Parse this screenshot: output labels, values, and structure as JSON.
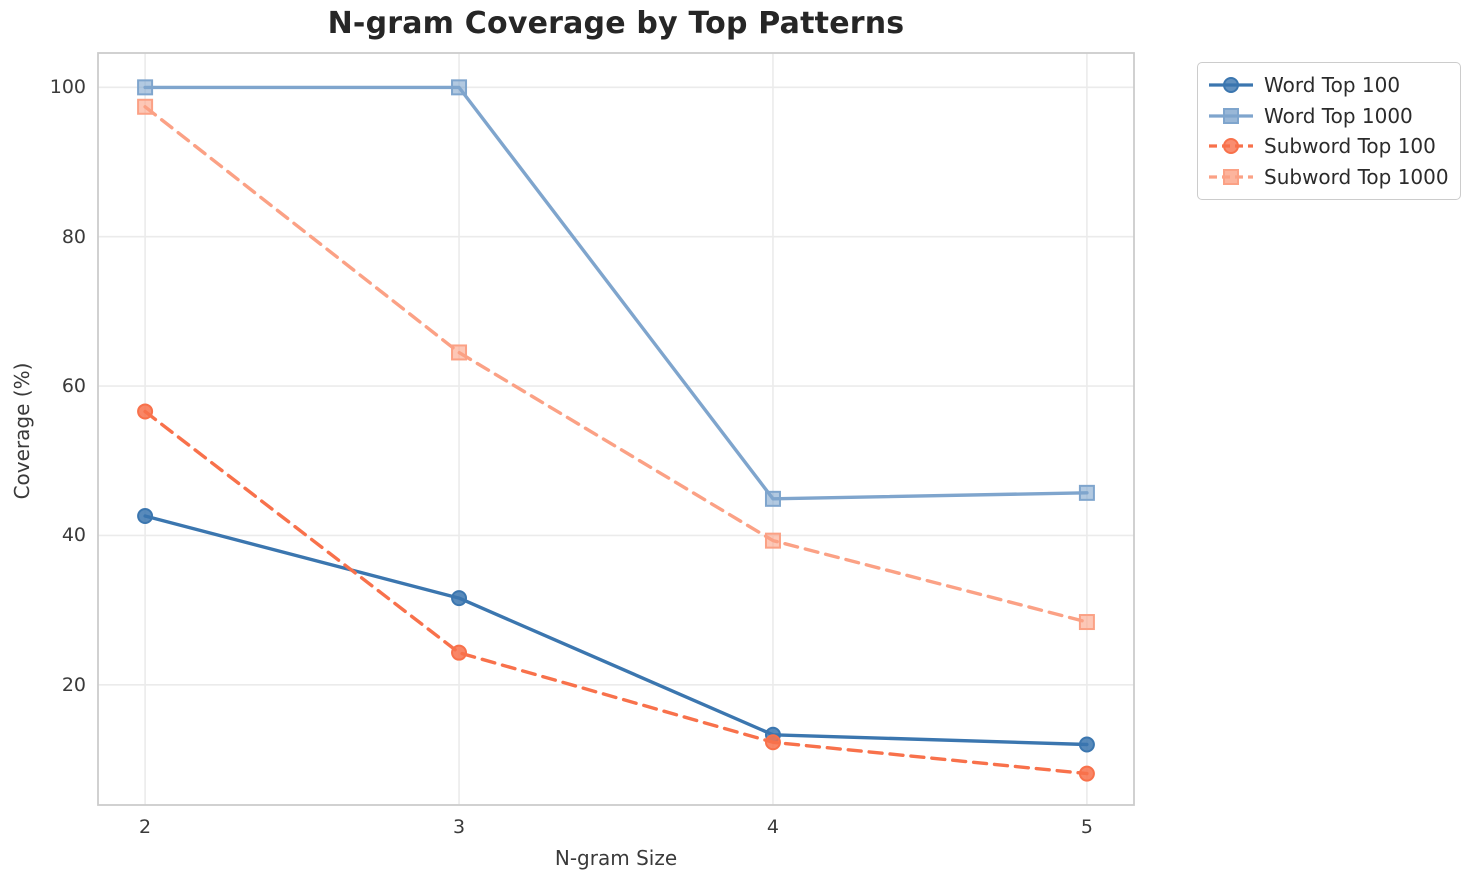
{
  "chart_data": {
    "type": "line",
    "title": "N-gram Coverage by Top Patterns",
    "xlabel": "N-gram Size",
    "ylabel": "Coverage (%)",
    "x": [
      2,
      3,
      4,
      5
    ],
    "xticks": [
      "2",
      "3",
      "4",
      "5"
    ],
    "yticks": [
      20,
      40,
      60,
      80,
      100
    ],
    "xlim": [
      1.85,
      5.15
    ],
    "ylim": [
      3.9,
      104.6
    ],
    "grid": true,
    "legend_position": "upper-right-outside",
    "series": [
      {
        "name": "Word Top 100",
        "values": [
          42.6,
          31.6,
          13.3,
          12.0
        ],
        "color": "#3b76af",
        "marker": "circle",
        "line_style": "solid"
      },
      {
        "name": "Word Top 1000",
        "values": [
          100.0,
          100.0,
          44.9,
          45.7
        ],
        "color": "#7fa5cd",
        "marker": "square",
        "line_style": "solid"
      },
      {
        "name": "Subword Top 100",
        "values": [
          56.6,
          24.3,
          12.3,
          8.1
        ],
        "color": "#f8714b",
        "marker": "circle",
        "line_style": "dashed"
      },
      {
        "name": "Subword Top 1000",
        "values": [
          97.4,
          64.5,
          39.3,
          28.4
        ],
        "color": "#fba185",
        "marker": "square",
        "line_style": "dashed"
      }
    ],
    "style": {
      "grid_color": "#ebebeb",
      "spine_color": "#cccccc",
      "title_color": "#262626",
      "tick_color": "#3a3a3a"
    }
  }
}
